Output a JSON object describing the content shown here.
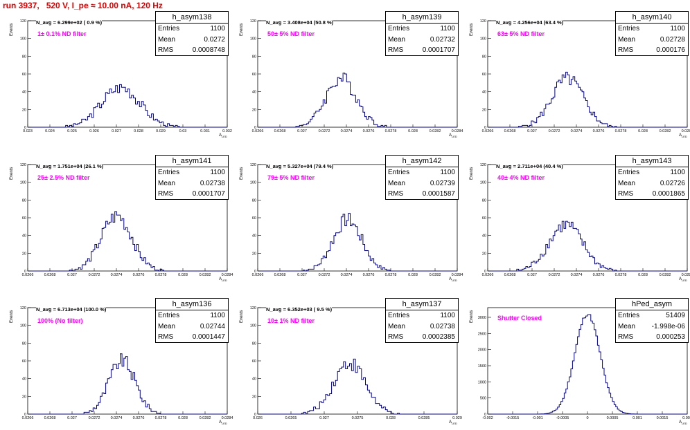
{
  "header": {
    "title": "run 3937,   520 V, I_pe ≈ 10.00 nA, 120 Hz"
  },
  "colors": {
    "histogram": "#00008b",
    "filter_text": "#ff00ff",
    "title_text": "#e00000"
  },
  "stats_labels": {
    "entries": "Entries",
    "mean": "Mean",
    "rms": "RMS"
  },
  "axis": {
    "ylabel": "Events",
    "xlabel": "A",
    "xlabel_sub": "LED"
  },
  "chart_data": [
    {
      "type": "histogram",
      "name": "h_asym138",
      "navg": "N_avg = 6.299e+02 ( 0.9 %)",
      "filter": "1± 0.1% ND filter",
      "entries": "1100",
      "mean": "0.0272",
      "rms": "0.0008748",
      "xlim": [
        0.023,
        0.032
      ],
      "ylim": [
        0,
        120
      ],
      "mu": 0.0272,
      "sigma": 0.00087,
      "peak": 45,
      "bins": 100,
      "xticks": [
        "0.023",
        "0.024",
        "0.025",
        "0.026",
        "0.027",
        "0.028",
        "0.029",
        "0.03",
        "0.031",
        "0.032"
      ],
      "yticks": [
        "0",
        "20",
        "40",
        "60",
        "80",
        "100",
        "120"
      ]
    },
    {
      "type": "histogram",
      "name": "h_asym139",
      "navg": "N_avg = 3.408e+04 (50.8 %)",
      "filter": "50± 5% ND filter",
      "entries": "1100",
      "mean": "0.02732",
      "rms": "0.0001707",
      "xlim": [
        0.0264,
        0.0286
      ],
      "ylim": [
        0,
        120
      ],
      "mu": 0.02732,
      "sigma": 0.00017,
      "peak": 55,
      "bins": 110,
      "xticks": [
        "0.0266",
        "0.0268",
        "0.027",
        "0.0272",
        "0.0274",
        "0.0276",
        "0.0278",
        "0.028",
        "0.0282",
        "0.0284"
      ],
      "yticks": [
        "0",
        "20",
        "40",
        "60",
        "80",
        "100",
        "120"
      ]
    },
    {
      "type": "histogram",
      "name": "h_asym140",
      "navg": "N_avg = 4.256e+04 (63.4 %)",
      "filter": "63± 5% ND filter",
      "entries": "1100",
      "mean": "0.02728",
      "rms": "0.000176",
      "xlim": [
        0.0264,
        0.0286
      ],
      "ylim": [
        0,
        120
      ],
      "mu": 0.02728,
      "sigma": 0.000176,
      "peak": 55,
      "bins": 110,
      "xticks": [
        "0.0266",
        "0.0268",
        "0.027",
        "0.0272",
        "0.0274",
        "0.0276",
        "0.0278",
        "0.028",
        "0.0282",
        "0.0284"
      ],
      "yticks": [
        "0",
        "20",
        "40",
        "60",
        "80",
        "100",
        "120"
      ]
    },
    {
      "type": "histogram",
      "name": "h_asym141",
      "navg": "N_avg = 1.751e+04 (26.1 %)",
      "filter": "25± 2.5% ND filter",
      "entries": "1100",
      "mean": "0.02738",
      "rms": "0.0001707",
      "xlim": [
        0.0264,
        0.0286
      ],
      "ylim": [
        0,
        120
      ],
      "mu": 0.02738,
      "sigma": 0.00017,
      "peak": 62,
      "bins": 110,
      "xticks": [
        "0.0266",
        "0.0268",
        "0.027",
        "0.0272",
        "0.0274",
        "0.0276",
        "0.0278",
        "0.028",
        "0.0282",
        "0.0284"
      ],
      "yticks": [
        "0",
        "20",
        "40",
        "60",
        "80",
        "100",
        "120"
      ]
    },
    {
      "type": "histogram",
      "name": "h_asym142",
      "navg": "N_avg = 5.327e+04 (79.4 %)",
      "filter": "79± 5% ND filter",
      "entries": "1100",
      "mean": "0.02739",
      "rms": "0.0001587",
      "xlim": [
        0.0264,
        0.0286
      ],
      "ylim": [
        0,
        120
      ],
      "mu": 0.02739,
      "sigma": 0.000159,
      "peak": 58,
      "bins": 110,
      "xticks": [
        "0.0266",
        "0.0268",
        "0.027",
        "0.0272",
        "0.0274",
        "0.0276",
        "0.0278",
        "0.028",
        "0.0282",
        "0.0284"
      ],
      "yticks": [
        "0",
        "20",
        "40",
        "60",
        "80",
        "100",
        "120"
      ]
    },
    {
      "type": "histogram",
      "name": "h_asym143",
      "navg": "N_avg = 2.711e+04 (40.4 %)",
      "filter": "40± 4% ND filter",
      "entries": "1100",
      "mean": "0.02726",
      "rms": "0.0001865",
      "xlim": [
        0.0264,
        0.0286
      ],
      "ylim": [
        0,
        120
      ],
      "mu": 0.02726,
      "sigma": 0.000187,
      "peak": 52,
      "bins": 110,
      "xticks": [
        "0.0266",
        "0.0268",
        "0.027",
        "0.0272",
        "0.0274",
        "0.0276",
        "0.0278",
        "0.028",
        "0.0282",
        "0.0284"
      ],
      "yticks": [
        "0",
        "20",
        "40",
        "60",
        "80",
        "100",
        "120"
      ]
    },
    {
      "type": "histogram",
      "name": "h_asym136",
      "navg": "N_avg = 6.713e+04 (100.0 %)",
      "filter": "100% (No filter)",
      "entries": "1100",
      "mean": "0.02744",
      "rms": "0.0001447",
      "xlim": [
        0.0264,
        0.0286
      ],
      "ylim": [
        0,
        120
      ],
      "mu": 0.02744,
      "sigma": 0.000145,
      "peak": 60,
      "bins": 110,
      "xticks": [
        "0.0266",
        "0.0268",
        "0.027",
        "0.0272",
        "0.0274",
        "0.0276",
        "0.0278",
        "0.028",
        "0.0282",
        "0.0284"
      ],
      "yticks": [
        "0",
        "20",
        "40",
        "60",
        "80",
        "100",
        "120"
      ]
    },
    {
      "type": "histogram",
      "name": "h_asym137",
      "navg": "N_avg = 6.352e+03 ( 9.5 %)",
      "filter": "10± 1% ND filter",
      "entries": "1100",
      "mean": "0.02738",
      "rms": "0.0002385",
      "xlim": [
        0.026,
        0.029
      ],
      "ylim": [
        0,
        120
      ],
      "mu": 0.02738,
      "sigma": 0.00024,
      "peak": 58,
      "bins": 100,
      "xticks": [
        "0.026",
        "0.0265",
        "0.027",
        "0.0275",
        "0.028",
        "0.0285",
        "0.029"
      ],
      "yticks": [
        "0",
        "20",
        "40",
        "60",
        "80",
        "100",
        "120"
      ]
    },
    {
      "type": "histogram",
      "name": "hPed_asym",
      "navg": "",
      "filter": "Shutter Closed",
      "entries": "51409",
      "mean": "-1.998e-06",
      "rms": "0.000253",
      "xlim": [
        -0.002,
        0.002
      ],
      "ylim": [
        0,
        3300
      ],
      "mu": 0.0,
      "sigma": 0.000253,
      "peak": 3100,
      "bins": 120,
      "xticks": [
        "-0.002",
        "-0.0015",
        "-0.001",
        "-0.0005",
        "0",
        "0.0005",
        "0.001",
        "0.0015",
        "0.002"
      ],
      "yticks": [
        "0",
        "500",
        "1000",
        "1500",
        "2000",
        "2500",
        "3000"
      ]
    }
  ]
}
